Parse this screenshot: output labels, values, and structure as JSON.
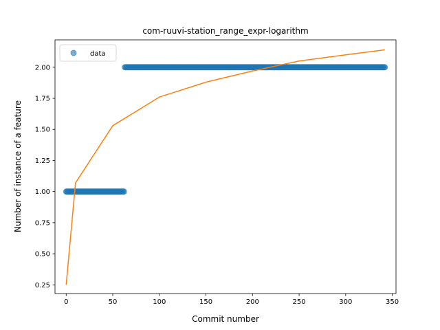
{
  "chart_data": {
    "type": "scatter",
    "title": "com-ruuvi-station_range_expr-logarithm",
    "xlabel": "Commit number",
    "ylabel": "Number of instance of a feature",
    "xlim": [
      -12,
      354
    ],
    "ylim": [
      0.18,
      2.22
    ],
    "xticks": [
      0,
      50,
      100,
      150,
      200,
      250,
      300,
      350
    ],
    "yticks": [
      0.25,
      0.5,
      0.75,
      1.0,
      1.25,
      1.5,
      1.75,
      2.0
    ],
    "xtick_labels": [
      "0",
      "50",
      "100",
      "150",
      "200",
      "250",
      "300",
      "350"
    ],
    "ytick_labels": [
      "0.25",
      "0.50",
      "0.75",
      "1.00",
      "1.25",
      "1.50",
      "1.75",
      "2.00"
    ],
    "legend": {
      "placement": "top-left",
      "entries": [
        "data"
      ]
    },
    "grid": false,
    "series": [
      {
        "name": "data",
        "kind": "scatter",
        "color": "#1f77b4",
        "segments": [
          {
            "x_start": 0,
            "x_end": 62,
            "y": 1.0
          },
          {
            "x_start": 63,
            "x_end": 342,
            "y": 2.0
          }
        ]
      },
      {
        "kind": "line",
        "color": "#ff7f0e",
        "model": "logarithmic",
        "points": [
          [
            0,
            0.25
          ],
          [
            10,
            1.07
          ],
          [
            50,
            1.53
          ],
          [
            100,
            1.76
          ],
          [
            150,
            1.88
          ],
          [
            200,
            1.97
          ],
          [
            250,
            2.05
          ],
          [
            300,
            2.1
          ],
          [
            342,
            2.14
          ]
        ]
      }
    ]
  }
}
